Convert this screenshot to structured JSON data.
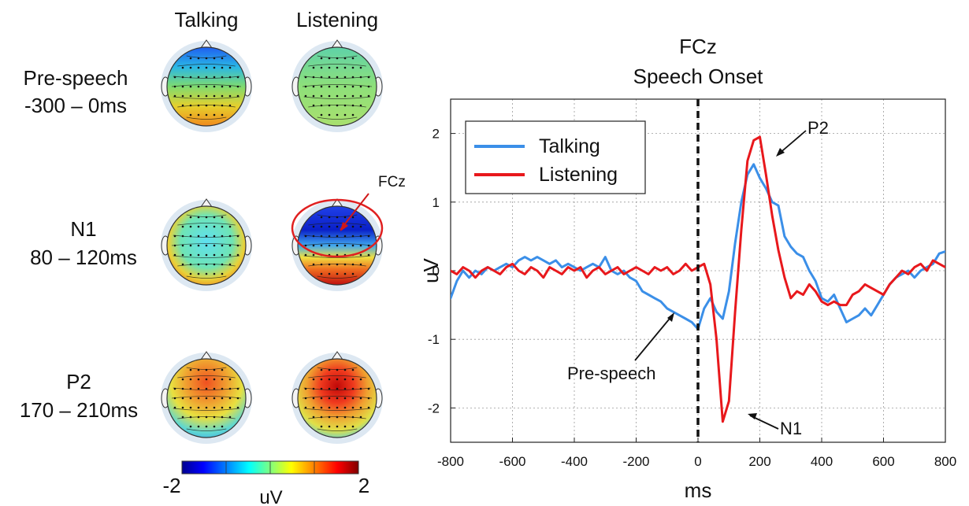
{
  "topomaps": {
    "column_headers": [
      "Talking",
      "Listening"
    ],
    "rows": [
      {
        "label_line1": "Pre-speech",
        "label_line2": "-300 – 0ms"
      },
      {
        "label_line1": "N1",
        "label_line2": "80 – 120ms"
      },
      {
        "label_line1": "P2",
        "label_line2": "170 – 210ms"
      }
    ],
    "fcz_label": "FCz",
    "colorbar": {
      "min_label": "-2",
      "max_label": "2",
      "unit_label": "uV",
      "colors": [
        "#00008f",
        "#0000ff",
        "#00ffff",
        "#ffff00",
        "#ff0000",
        "#800000"
      ]
    }
  },
  "chart_data": {
    "type": "line",
    "title": "FCz",
    "subtitle": "Speech Onset",
    "xlabel": "ms",
    "ylabel": "uV",
    "xlim": [
      -800,
      800
    ],
    "ylim": [
      -2.5,
      2.5
    ],
    "xticks": [
      -800,
      -600,
      -400,
      -200,
      0,
      200,
      400,
      600,
      800
    ],
    "yticks": [
      -2,
      -1,
      0,
      1,
      2
    ],
    "grid": true,
    "legend_position": "top-left",
    "onset_marker_x": 0,
    "series": [
      {
        "name": "Talking",
        "color": "#3b8fe8",
        "x": [
          -800,
          -780,
          -760,
          -740,
          -720,
          -700,
          -680,
          -660,
          -640,
          -620,
          -600,
          -580,
          -560,
          -540,
          -520,
          -500,
          -480,
          -460,
          -440,
          -420,
          -400,
          -380,
          -360,
          -340,
          -320,
          -300,
          -280,
          -260,
          -240,
          -220,
          -200,
          -180,
          -160,
          -140,
          -120,
          -100,
          -80,
          -60,
          -40,
          -20,
          0,
          20,
          40,
          60,
          80,
          100,
          120,
          140,
          160,
          180,
          200,
          220,
          240,
          260,
          280,
          300,
          320,
          340,
          360,
          380,
          400,
          420,
          440,
          460,
          480,
          500,
          520,
          540,
          560,
          580,
          600,
          620,
          640,
          660,
          680,
          700,
          720,
          740,
          760,
          780,
          800
        ],
        "y": [
          -0.4,
          -0.15,
          0.0,
          -0.1,
          0.0,
          -0.05,
          0.05,
          0.0,
          0.05,
          0.1,
          0.05,
          0.15,
          0.2,
          0.15,
          0.2,
          0.15,
          0.1,
          0.15,
          0.05,
          0.1,
          0.05,
          0.0,
          0.05,
          0.1,
          0.05,
          0.2,
          0.0,
          -0.05,
          0.0,
          -0.1,
          -0.15,
          -0.3,
          -0.35,
          -0.4,
          -0.45,
          -0.55,
          -0.6,
          -0.65,
          -0.7,
          -0.75,
          -0.85,
          -0.55,
          -0.4,
          -0.6,
          -0.7,
          -0.3,
          0.4,
          1.0,
          1.4,
          1.55,
          1.35,
          1.2,
          1.0,
          0.95,
          0.5,
          0.35,
          0.25,
          0.2,
          0.0,
          -0.15,
          -0.4,
          -0.45,
          -0.35,
          -0.55,
          -0.75,
          -0.7,
          -0.65,
          -0.55,
          -0.65,
          -0.5,
          -0.35,
          -0.2,
          -0.1,
          -0.05,
          0.0,
          -0.1,
          0.0,
          0.05,
          0.1,
          0.25,
          0.28
        ]
      },
      {
        "name": "Listening",
        "color": "#e8181c",
        "x": [
          -800,
          -780,
          -760,
          -740,
          -720,
          -700,
          -680,
          -660,
          -640,
          -620,
          -600,
          -580,
          -560,
          -540,
          -520,
          -500,
          -480,
          -460,
          -440,
          -420,
          -400,
          -380,
          -360,
          -340,
          -320,
          -300,
          -280,
          -260,
          -240,
          -220,
          -200,
          -180,
          -160,
          -140,
          -120,
          -100,
          -80,
          -60,
          -40,
          -20,
          0,
          20,
          40,
          60,
          80,
          100,
          120,
          140,
          160,
          180,
          200,
          220,
          240,
          260,
          280,
          300,
          320,
          340,
          360,
          380,
          400,
          420,
          440,
          460,
          480,
          500,
          520,
          540,
          560,
          580,
          600,
          620,
          640,
          660,
          680,
          700,
          720,
          740,
          760,
          780,
          800
        ],
        "y": [
          0.0,
          -0.05,
          0.05,
          0.0,
          -0.1,
          0.0,
          0.05,
          0.0,
          -0.05,
          0.05,
          0.1,
          0.0,
          -0.05,
          0.05,
          0.0,
          -0.1,
          0.05,
          0.0,
          -0.05,
          0.05,
          0.0,
          0.05,
          -0.1,
          0.0,
          0.05,
          -0.05,
          0.0,
          0.05,
          -0.05,
          0.0,
          0.05,
          0.0,
          -0.05,
          0.05,
          0.0,
          0.05,
          -0.05,
          0.0,
          0.1,
          0.0,
          0.05,
          0.1,
          -0.2,
          -1.0,
          -2.2,
          -1.9,
          -0.6,
          0.6,
          1.6,
          1.9,
          1.95,
          1.4,
          0.8,
          0.3,
          -0.1,
          -0.4,
          -0.3,
          -0.35,
          -0.2,
          -0.3,
          -0.45,
          -0.5,
          -0.45,
          -0.5,
          -0.5,
          -0.35,
          -0.3,
          -0.2,
          -0.25,
          -0.3,
          -0.35,
          -0.2,
          -0.1,
          0.0,
          -0.05,
          0.05,
          0.1,
          0.0,
          0.15,
          0.1,
          0.05
        ]
      }
    ],
    "annotations": [
      {
        "text": "P2",
        "x": 240,
        "y": 2.0
      },
      {
        "text": "N1",
        "x": 240,
        "y": -2.25
      },
      {
        "text": "Pre-speech",
        "x": -210,
        "y": -1.45
      },
      {
        "text": "FCz",
        "x": 0,
        "y": 0
      }
    ]
  }
}
